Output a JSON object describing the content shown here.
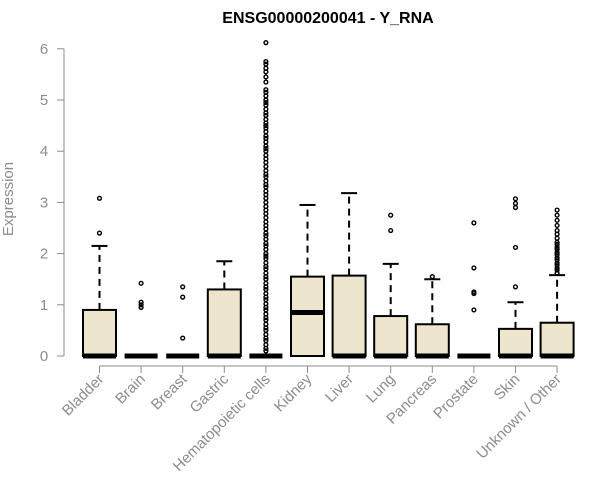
{
  "chart_data": {
    "type": "box",
    "title": "ENSG00000200041 - Y_RNA",
    "xlabel": "",
    "ylabel": "Expression",
    "ylim": [
      0,
      6.2
    ],
    "yticks": [
      0,
      1,
      2,
      3,
      4,
      5,
      6
    ],
    "grid": false,
    "colors": {
      "box_fill": "#ede6cc",
      "stroke": "#000000",
      "axis": "#8c8c8c"
    },
    "categories": [
      "Bladder",
      "Brain",
      "Breast",
      "Gastric",
      "Hematopoietic cells",
      "Kidney",
      "Liver",
      "Lung",
      "Pancreas",
      "Prostate",
      "Skin",
      "Unknown / Other"
    ],
    "boxes": [
      {
        "q1": 0,
        "median": 0,
        "q3": 0.9,
        "whisker_low": 0,
        "whisker_high": 2.15,
        "outliers": [
          2.4,
          3.08
        ]
      },
      {
        "q1": 0,
        "median": 0,
        "q3": 0,
        "whisker_low": 0,
        "whisker_high": 0,
        "outliers": [
          0.95,
          1.0,
          1.05,
          1.42
        ]
      },
      {
        "q1": 0,
        "median": 0,
        "q3": 0,
        "whisker_low": 0,
        "whisker_high": 0,
        "outliers": [
          0.35,
          1.15,
          1.35
        ]
      },
      {
        "q1": 0,
        "median": 0,
        "q3": 1.3,
        "whisker_low": 0,
        "whisker_high": 1.85,
        "outliers": []
      },
      {
        "q1": 0,
        "median": 0,
        "q3": 0,
        "whisker_low": 0,
        "whisker_high": 0,
        "outliers": [
          6.12,
          5.75,
          5.7,
          5.62,
          5.55,
          5.45,
          5.35,
          5.2,
          5.15,
          5.08,
          5.0,
          4.95,
          4.9,
          4.82,
          4.75,
          4.7,
          4.62,
          4.55,
          4.5,
          4.45,
          4.38,
          4.3,
          4.25,
          4.18,
          4.1,
          4.05,
          4.0,
          3.92,
          3.85,
          3.78,
          3.7,
          3.62,
          3.55,
          3.5,
          3.42,
          3.35,
          3.3,
          3.22,
          3.15,
          3.08,
          3.0,
          2.92,
          2.85,
          2.78,
          2.7,
          2.62,
          2.55,
          2.48,
          2.4,
          2.35,
          2.28,
          2.2,
          2.15,
          2.08,
          2.0,
          1.95,
          1.9,
          1.82,
          1.75,
          1.7,
          1.62,
          1.55,
          1.5,
          1.42,
          1.35,
          1.3,
          1.22,
          1.15,
          1.1,
          1.02,
          0.95,
          0.9,
          0.82,
          0.75,
          0.7,
          0.62,
          0.55,
          0.5,
          0.42,
          0.35,
          0.3,
          0.22,
          0.15,
          0.1
        ]
      },
      {
        "q1": 0,
        "median": 0.85,
        "q3": 1.55,
        "whisker_low": 0,
        "whisker_high": 2.95,
        "outliers": []
      },
      {
        "q1": 0,
        "median": 0,
        "q3": 1.57,
        "whisker_low": 0,
        "whisker_high": 3.18,
        "outliers": []
      },
      {
        "q1": 0,
        "median": 0,
        "q3": 0.78,
        "whisker_low": 0,
        "whisker_high": 1.8,
        "outliers": [
          2.45,
          2.75
        ]
      },
      {
        "q1": 0,
        "median": 0,
        "q3": 0.62,
        "whisker_low": 0,
        "whisker_high": 1.5,
        "outliers": [
          1.55
        ]
      },
      {
        "q1": 0,
        "median": 0,
        "q3": 0,
        "whisker_low": 0,
        "whisker_high": 0,
        "outliers": [
          0.9,
          1.22,
          1.25,
          1.72,
          2.6
        ]
      },
      {
        "q1": 0,
        "median": 0,
        "q3": 0.53,
        "whisker_low": 0,
        "whisker_high": 1.05,
        "outliers": [
          1.35,
          2.12,
          2.9,
          2.98,
          3.07
        ]
      },
      {
        "q1": 0,
        "median": 0,
        "q3": 0.65,
        "whisker_low": 0,
        "whisker_high": 1.58,
        "outliers": [
          1.62,
          1.68,
          1.72,
          1.78,
          1.82,
          1.88,
          1.92,
          1.98,
          2.02,
          2.08,
          2.12,
          2.18,
          2.22,
          2.3,
          2.38,
          2.45,
          2.55,
          2.65,
          2.75,
          2.85
        ]
      }
    ]
  }
}
